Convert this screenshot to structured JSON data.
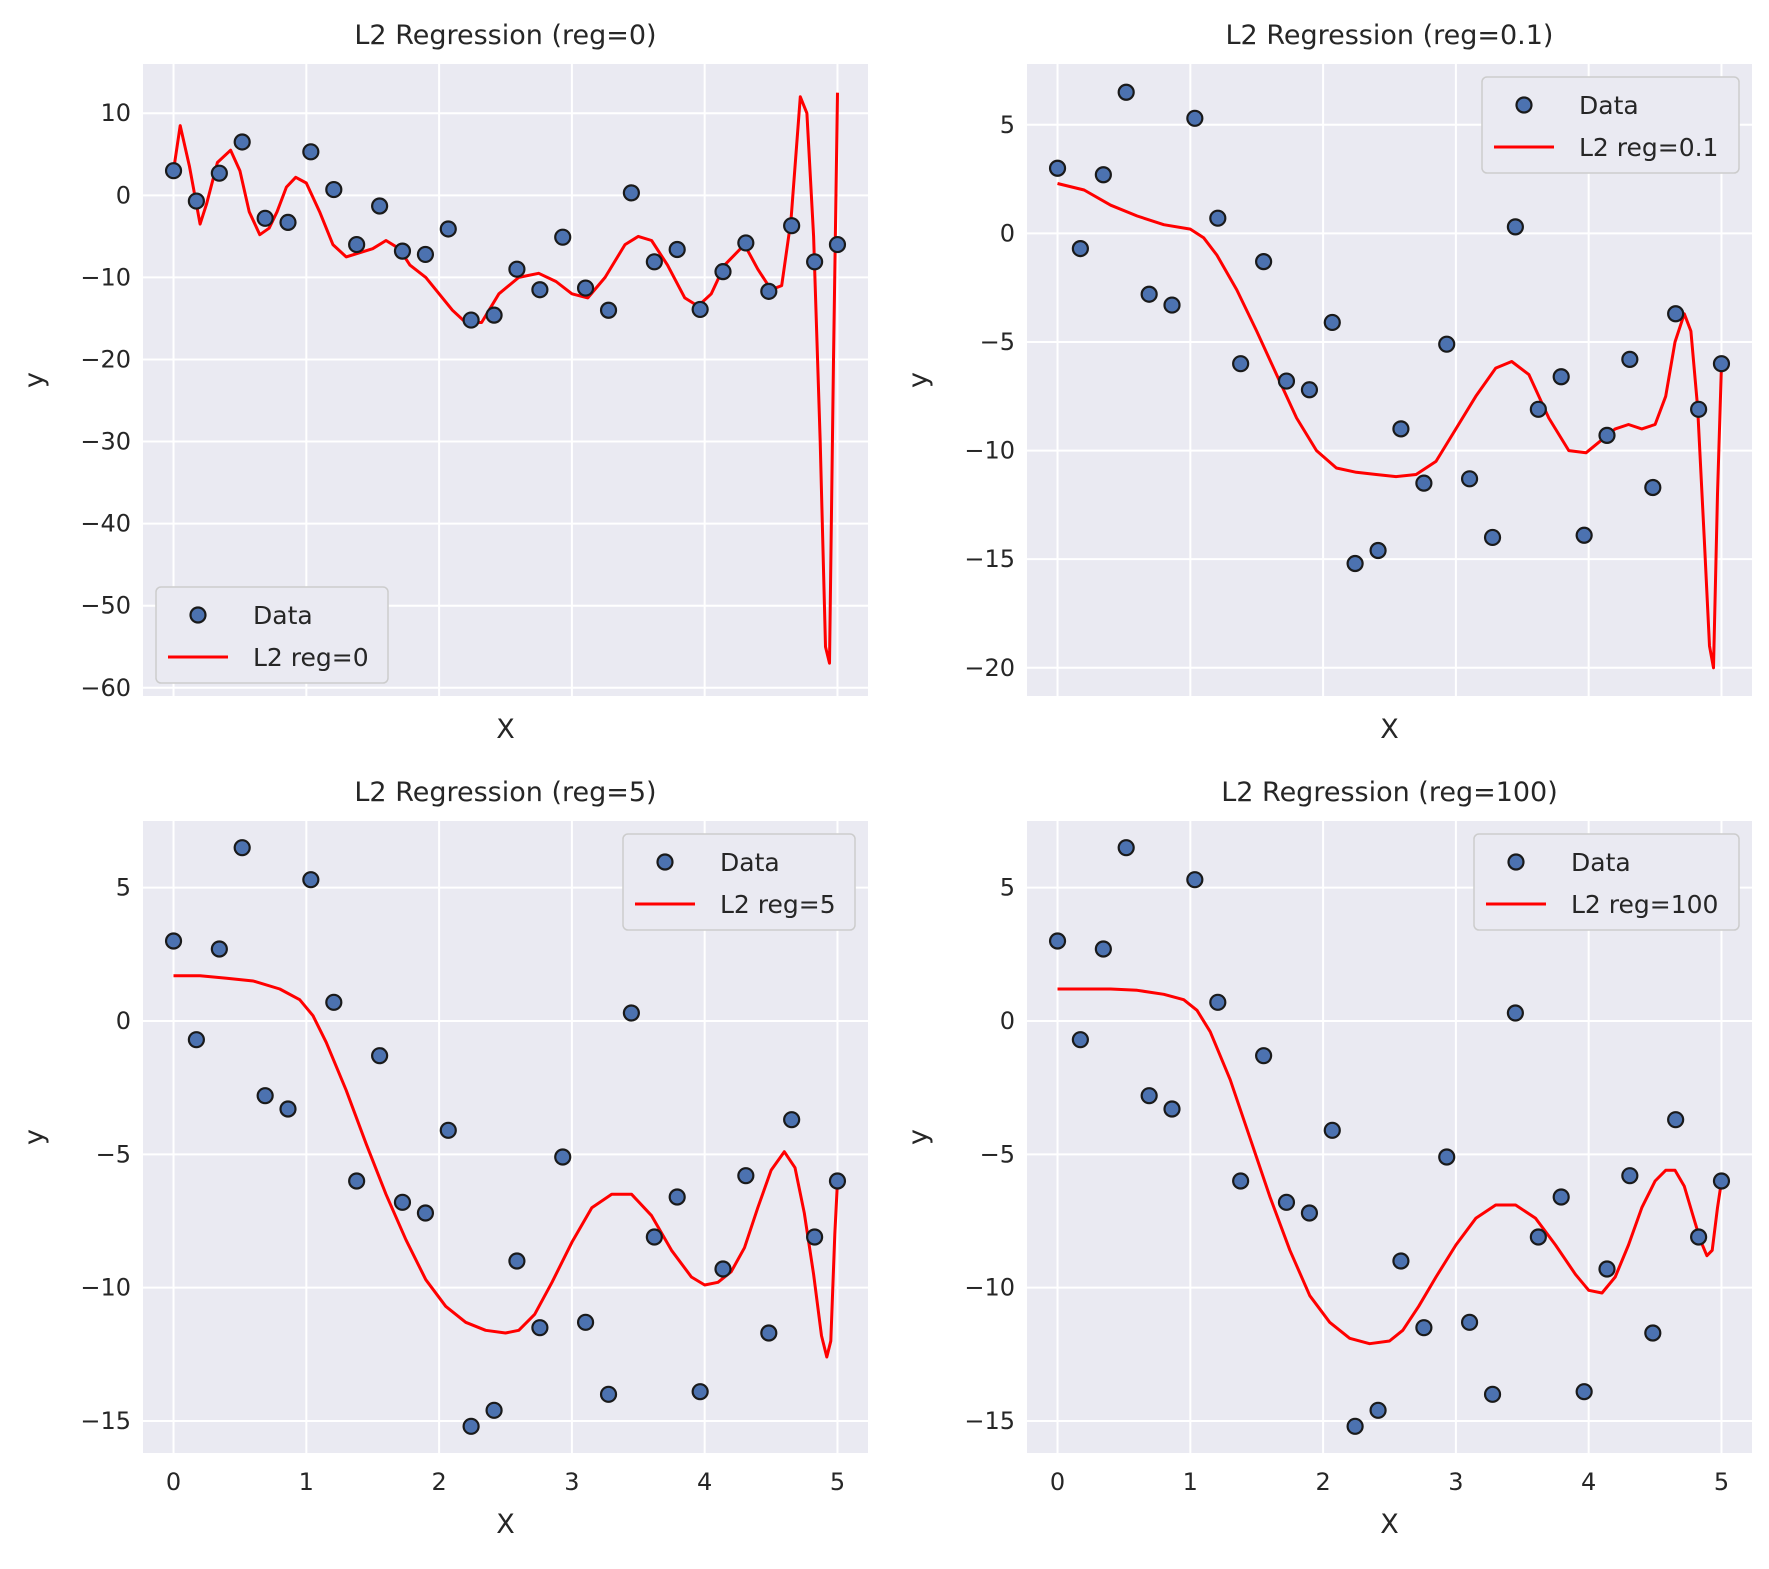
{
  "chart_data": [
    {
      "type": "scatter",
      "title": "L2 Regression (reg=0)",
      "xlabel": "X",
      "ylabel": "y",
      "xlim": [
        -0.23,
        5.23
      ],
      "ylim": [
        -61,
        16
      ],
      "xticks": [],
      "yticks": [
        10,
        0,
        -10,
        -20,
        -30,
        -40,
        -50,
        -60
      ],
      "show_xtick_labels": false,
      "legend_position": "lower left",
      "series": [
        {
          "name": "Data",
          "kind": "scatter",
          "color": "#4c72b0",
          "points": "data"
        },
        {
          "name": "L2 reg=0",
          "kind": "line",
          "color": "#ff0000",
          "x": [
            0.0,
            0.05,
            0.12,
            0.2,
            0.25,
            0.33,
            0.43,
            0.5,
            0.57,
            0.65,
            0.72,
            0.78,
            0.85,
            0.92,
            1.0,
            1.1,
            1.2,
            1.3,
            1.4,
            1.5,
            1.6,
            1.7,
            1.78,
            1.9,
            2.0,
            2.1,
            2.2,
            2.32,
            2.45,
            2.6,
            2.75,
            2.88,
            3.0,
            3.12,
            3.25,
            3.4,
            3.5,
            3.6,
            3.72,
            3.85,
            3.95,
            4.05,
            4.15,
            4.3,
            4.4,
            4.5,
            4.58,
            4.65,
            4.72,
            4.77,
            4.82,
            4.87,
            4.91,
            4.94,
            4.97,
            5.0
          ],
          "y": [
            3.0,
            8.5,
            3.5,
            -3.5,
            -1.0,
            4.0,
            5.5,
            3.0,
            -2.0,
            -4.8,
            -4.0,
            -2.0,
            1.0,
            2.2,
            1.5,
            -2.0,
            -6.0,
            -7.5,
            -7.0,
            -6.5,
            -5.5,
            -6.5,
            -8.5,
            -10.0,
            -12.0,
            -14.0,
            -15.5,
            -15.5,
            -12.0,
            -10.0,
            -9.5,
            -10.5,
            -12.0,
            -12.5,
            -10.0,
            -6.0,
            -5.0,
            -5.5,
            -8.5,
            -12.5,
            -13.5,
            -12.0,
            -8.5,
            -6.0,
            -9.0,
            -11.5,
            -11.0,
            -3.0,
            12.0,
            10.0,
            -5.0,
            -30.0,
            -55.0,
            -57.0,
            -20.0,
            12.5
          ]
        }
      ]
    },
    {
      "type": "scatter",
      "title": "L2 Regression (reg=0.1)",
      "xlabel": "X",
      "ylabel": "y",
      "xlim": [
        -0.23,
        5.23
      ],
      "ylim": [
        -21.3,
        7.8
      ],
      "xticks": [],
      "yticks": [
        5,
        0,
        -5,
        -10,
        -15,
        -20
      ],
      "show_xtick_labels": false,
      "legend_position": "upper right",
      "series": [
        {
          "name": "Data",
          "kind": "scatter",
          "color": "#4c72b0",
          "points": "data"
        },
        {
          "name": "L2 reg=0.1",
          "kind": "line",
          "color": "#ff0000",
          "x": [
            0.0,
            0.2,
            0.4,
            0.6,
            0.8,
            1.0,
            1.1,
            1.2,
            1.35,
            1.5,
            1.65,
            1.8,
            1.95,
            2.1,
            2.25,
            2.4,
            2.55,
            2.7,
            2.85,
            3.0,
            3.15,
            3.3,
            3.42,
            3.55,
            3.7,
            3.85,
            3.98,
            4.1,
            4.2,
            4.3,
            4.4,
            4.5,
            4.58,
            4.65,
            4.72,
            4.77,
            4.82,
            4.87,
            4.91,
            4.94,
            4.97,
            5.0
          ],
          "y": [
            2.3,
            2.0,
            1.3,
            0.8,
            0.4,
            0.2,
            -0.2,
            -1.0,
            -2.6,
            -4.5,
            -6.5,
            -8.5,
            -10.0,
            -10.8,
            -11.0,
            -11.1,
            -11.2,
            -11.1,
            -10.5,
            -9.0,
            -7.5,
            -6.2,
            -5.9,
            -6.5,
            -8.5,
            -10.0,
            -10.1,
            -9.5,
            -9.0,
            -8.8,
            -9.0,
            -8.8,
            -7.5,
            -5.0,
            -3.7,
            -4.5,
            -8.0,
            -14.0,
            -19.0,
            -20.0,
            -12.0,
            -6.0
          ]
        }
      ]
    },
    {
      "type": "scatter",
      "title": "L2 Regression (reg=5)",
      "xlabel": "X",
      "ylabel": "y",
      "xlim": [
        -0.23,
        5.23
      ],
      "ylim": [
        -16.2,
        7.5
      ],
      "xticks": [
        0,
        1,
        2,
        3,
        4,
        5
      ],
      "yticks": [
        5,
        0,
        -5,
        -10,
        -15
      ],
      "show_xtick_labels": true,
      "legend_position": "upper right",
      "series": [
        {
          "name": "Data",
          "kind": "scatter",
          "color": "#4c72b0",
          "points": "data"
        },
        {
          "name": "L2 reg=5",
          "kind": "line",
          "color": "#ff0000",
          "x": [
            0.0,
            0.2,
            0.4,
            0.6,
            0.8,
            0.95,
            1.05,
            1.15,
            1.3,
            1.45,
            1.6,
            1.75,
            1.9,
            2.05,
            2.2,
            2.35,
            2.5,
            2.6,
            2.72,
            2.85,
            3.0,
            3.15,
            3.3,
            3.45,
            3.6,
            3.75,
            3.9,
            4.0,
            4.1,
            4.2,
            4.3,
            4.4,
            4.5,
            4.6,
            4.68,
            4.75,
            4.82,
            4.88,
            4.92,
            4.95,
            4.98,
            5.0
          ],
          "y": [
            1.7,
            1.7,
            1.6,
            1.5,
            1.2,
            0.8,
            0.2,
            -0.8,
            -2.6,
            -4.6,
            -6.5,
            -8.2,
            -9.7,
            -10.7,
            -11.3,
            -11.6,
            -11.7,
            -11.6,
            -11.0,
            -9.8,
            -8.3,
            -7.0,
            -6.5,
            -6.5,
            -7.3,
            -8.6,
            -9.6,
            -9.9,
            -9.8,
            -9.4,
            -8.5,
            -7.0,
            -5.6,
            -4.9,
            -5.5,
            -7.2,
            -9.5,
            -11.8,
            -12.6,
            -12.0,
            -8.0,
            -6.0
          ]
        }
      ]
    },
    {
      "type": "scatter",
      "title": "L2 Regression (reg=100)",
      "xlabel": "X",
      "ylabel": "y",
      "xlim": [
        -0.23,
        5.23
      ],
      "ylim": [
        -16.2,
        7.5
      ],
      "xticks": [
        0,
        1,
        2,
        3,
        4,
        5
      ],
      "yticks": [
        5,
        0,
        -5,
        -10,
        -15
      ],
      "show_xtick_labels": true,
      "legend_position": "upper right",
      "series": [
        {
          "name": "Data",
          "kind": "scatter",
          "color": "#4c72b0",
          "points": "data"
        },
        {
          "name": "L2 reg=100",
          "kind": "line",
          "color": "#ff0000",
          "x": [
            0.0,
            0.2,
            0.4,
            0.6,
            0.8,
            0.95,
            1.05,
            1.15,
            1.3,
            1.45,
            1.6,
            1.75,
            1.9,
            2.05,
            2.2,
            2.35,
            2.5,
            2.6,
            2.72,
            2.85,
            3.0,
            3.15,
            3.3,
            3.45,
            3.6,
            3.75,
            3.9,
            4.0,
            4.1,
            4.2,
            4.3,
            4.4,
            4.5,
            4.58,
            4.65,
            4.72,
            4.78,
            4.84,
            4.89,
            4.93,
            4.97,
            5.0
          ],
          "y": [
            1.2,
            1.2,
            1.2,
            1.15,
            1.0,
            0.8,
            0.4,
            -0.4,
            -2.2,
            -4.4,
            -6.6,
            -8.6,
            -10.3,
            -11.3,
            -11.9,
            -12.1,
            -12.0,
            -11.6,
            -10.7,
            -9.6,
            -8.4,
            -7.4,
            -6.9,
            -6.9,
            -7.4,
            -8.4,
            -9.5,
            -10.1,
            -10.2,
            -9.6,
            -8.4,
            -7.0,
            -6.0,
            -5.6,
            -5.6,
            -6.2,
            -7.2,
            -8.2,
            -8.8,
            -8.6,
            -7.0,
            -6.0
          ]
        }
      ]
    }
  ],
  "data": {
    "x": [
      0.0,
      0.172,
      0.345,
      0.517,
      0.69,
      0.862,
      1.034,
      1.207,
      1.379,
      1.552,
      1.724,
      1.897,
      2.069,
      2.241,
      2.414,
      2.586,
      2.759,
      2.931,
      3.103,
      3.276,
      3.448,
      3.621,
      3.793,
      3.966,
      4.138,
      4.31,
      4.483,
      4.655,
      4.828,
      5.0
    ],
    "y": [
      3.0,
      -0.7,
      2.7,
      6.5,
      -2.8,
      -3.3,
      5.3,
      0.7,
      -6.0,
      -1.3,
      -6.8,
      -7.2,
      -4.1,
      -15.2,
      -14.6,
      -9.0,
      -11.5,
      -5.1,
      -11.3,
      -14.0,
      0.3,
      -8.1,
      -6.6,
      -13.9,
      -9.3,
      -5.8,
      -11.7,
      -3.7,
      -8.1,
      -6.0
    ]
  }
}
